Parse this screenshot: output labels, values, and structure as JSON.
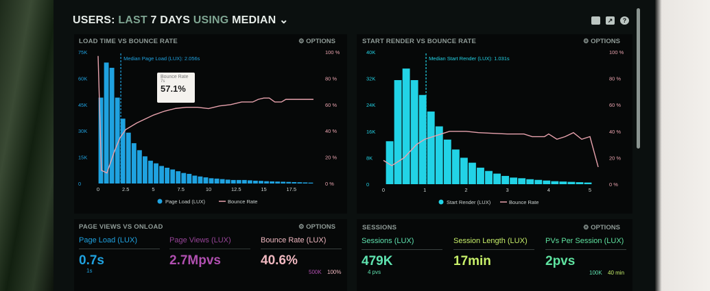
{
  "header": {
    "users": "USERS:",
    "last": "LAST",
    "days": "7 DAYS",
    "using": "USING",
    "median": "MEDIAN",
    "chevron": "chevron-down-icon",
    "icons": [
      "monitor-icon",
      "share-icon",
      "help-icon"
    ]
  },
  "colors": {
    "blue": "#1fa2e0",
    "cyan": "#22d3e6",
    "pink": "#e9a3ae",
    "purple": "#b04fb0",
    "green": "#5fe3b0",
    "lime": "#c8f06a"
  },
  "chart_data": [
    {
      "type": "bar",
      "title": "LOAD TIME VS BOUNCE RATE",
      "options": "OPTIONS",
      "x_ticks": [
        "0",
        "2.5",
        "5",
        "7.5",
        "10",
        "12.5",
        "15",
        "17.5"
      ],
      "y_ticks": [
        "0",
        "15K",
        "30K",
        "45K",
        "60K",
        "75K"
      ],
      "y2_ticks": [
        "0 %",
        "20 %",
        "40 %",
        "60 %",
        "80 %",
        "100 %"
      ],
      "xlim": [
        0,
        20
      ],
      "ylim": [
        0,
        75000
      ],
      "y2lim": [
        0,
        100
      ],
      "bin_width": 0.5,
      "series": [
        {
          "name": "Page Load (LUX)",
          "type": "bar",
          "x_start": 0,
          "values": [
            49000,
            69000,
            66000,
            49000,
            37000,
            29000,
            23000,
            19000,
            15500,
            13000,
            11500,
            10000,
            9000,
            8000,
            7000,
            6000,
            5500,
            4500,
            4000,
            3500,
            3000,
            2800,
            2500,
            2200,
            2000,
            2000,
            2000,
            1800,
            1600,
            1500,
            1300,
            1200,
            1100,
            1000,
            900,
            800,
            700,
            600,
            500
          ]
        },
        {
          "name": "Bounce Rate",
          "type": "line",
          "points": [
            [
              0,
              97
            ],
            [
              0.3,
              10
            ],
            [
              0.8,
              8
            ],
            [
              1.5,
              25
            ],
            [
              2,
              35
            ],
            [
              2.5,
              41
            ],
            [
              3.5,
              46
            ],
            [
              5,
              52
            ],
            [
              6,
              55
            ],
            [
              7,
              57.1
            ],
            [
              8,
              58
            ],
            [
              9,
              58
            ],
            [
              10,
              57
            ],
            [
              11,
              59
            ],
            [
              12,
              60
            ],
            [
              13,
              62
            ],
            [
              14,
              62
            ],
            [
              14.5,
              64
            ],
            [
              15,
              65
            ],
            [
              15.5,
              65
            ],
            [
              16,
              62
            ],
            [
              16.6,
              62
            ],
            [
              17,
              64
            ],
            [
              18,
              64
            ],
            [
              19.5,
              64
            ]
          ]
        }
      ],
      "median": {
        "value": 2.056,
        "label": "Median Page Load (LUX): 2.056s"
      },
      "tooltip": {
        "title": "Bounce Rate",
        "x": "7s",
        "value": "57.1%"
      }
    },
    {
      "type": "bar",
      "title": "START RENDER VS BOUNCE RATE",
      "options": "OPTIONS",
      "x_ticks": [
        "0",
        "1",
        "2",
        "3",
        "4",
        "5"
      ],
      "y_ticks": [
        "0",
        "8K",
        "16K",
        "24K",
        "32K",
        "40K"
      ],
      "y2_ticks": [
        "0 %",
        "20 %",
        "40 %",
        "60 %",
        "80 %",
        "100 %"
      ],
      "xlim": [
        0,
        5.3
      ],
      "ylim": [
        0,
        40000
      ],
      "y2lim": [
        0,
        100
      ],
      "bin_width": 0.2,
      "series": [
        {
          "name": "Start Render (LUX)",
          "type": "bar",
          "x_start": 0.05,
          "values": [
            13000,
            31500,
            35000,
            31500,
            27000,
            22000,
            17500,
            13500,
            10500,
            8000,
            6500,
            5000,
            4000,
            3200,
            2500,
            2000,
            1800,
            1500,
            1300,
            1100,
            900,
            800,
            700,
            600,
            500
          ]
        },
        {
          "name": "Bounce Rate",
          "type": "line",
          "points": [
            [
              0,
              18
            ],
            [
              0.2,
              14
            ],
            [
              0.5,
              20
            ],
            [
              0.8,
              30
            ],
            [
              1,
              34
            ],
            [
              1.3,
              37
            ],
            [
              1.6,
              40
            ],
            [
              2,
              40
            ],
            [
              2.3,
              39
            ],
            [
              3,
              38
            ],
            [
              3.4,
              38
            ],
            [
              3.6,
              36
            ],
            [
              3.9,
              36
            ],
            [
              4,
              38
            ],
            [
              4.2,
              34
            ],
            [
              4.4,
              36
            ],
            [
              4.6,
              39
            ],
            [
              4.8,
              34
            ],
            [
              5,
              36
            ],
            [
              5.2,
              13
            ]
          ]
        }
      ],
      "median": {
        "value": 1.031,
        "label": "Median Start Render (LUX): 1.031s"
      }
    }
  ],
  "pageviews": {
    "title": "PAGE VIEWS VS ONLOAD",
    "options": "OPTIONS",
    "metrics": [
      {
        "label": "Page Load (LUX)",
        "value": "0.7s"
      },
      {
        "label": "Page Views (LUX)",
        "value": "2.7Mpvs"
      },
      {
        "label": "Bounce Rate (LUX)",
        "value": "40.6%"
      }
    ],
    "axis_left": "1s",
    "axis_mid": "500K",
    "axis_right": "100%"
  },
  "sessions": {
    "title": "SESSIONS",
    "options": "OPTIONS",
    "metrics": [
      {
        "label": "Sessions (LUX)",
        "value": "479K"
      },
      {
        "label": "Session Length (LUX)",
        "value": "17min"
      },
      {
        "label": "PVs Per Session (LUX)",
        "value": "2pvs"
      }
    ],
    "axis_left": "4 pvs",
    "axis_mid": "100K",
    "axis_right": "40 min"
  }
}
